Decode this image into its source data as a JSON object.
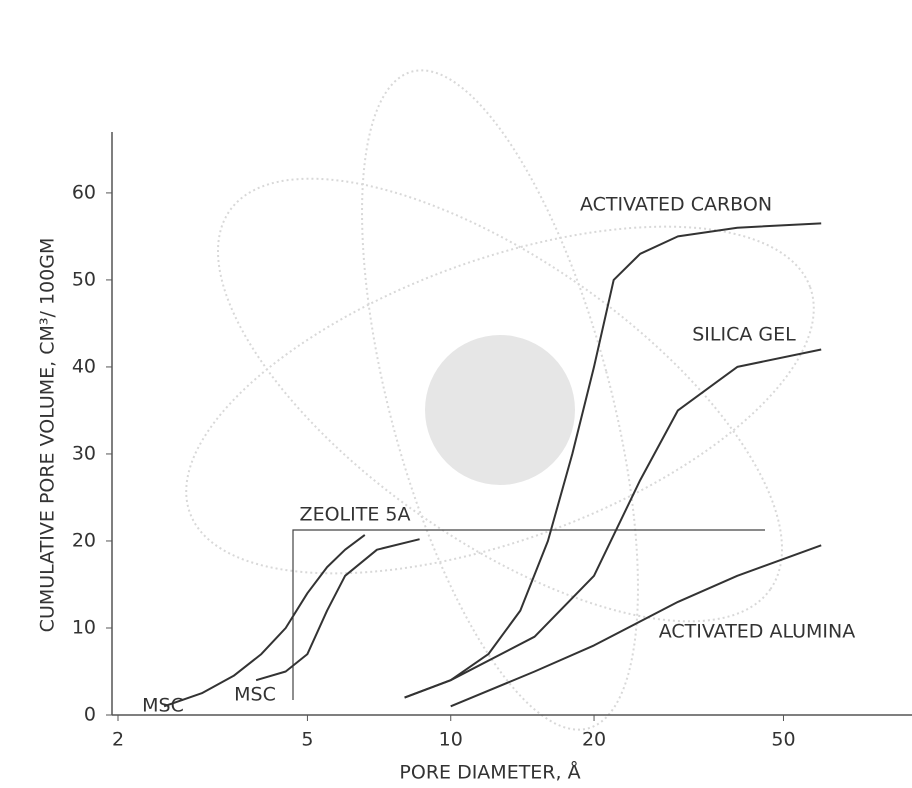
{
  "chart_data": {
    "type": "line",
    "xlabel": "PORE DIAMETER, Å",
    "ylabel": "CUMULATIVE PORE VOLUME, CM³/ 100GM",
    "xscale": "log",
    "xlim": [
      2,
      90
    ],
    "xticks": [
      2,
      5,
      10,
      20,
      50
    ],
    "ylim": [
      0,
      67
    ],
    "yticks": [
      0,
      10,
      20,
      30,
      40,
      50,
      60
    ],
    "annotations": [
      "ZEOLITE 5A"
    ],
    "series": [
      {
        "name": "ACTIVATED CARBON",
        "color": "#333333",
        "x": [
          8,
          10,
          12,
          14,
          16,
          18,
          20,
          22,
          25,
          30,
          40,
          60
        ],
        "values": [
          2,
          4,
          7,
          12,
          20,
          30,
          40,
          50,
          53,
          55,
          56,
          56.5
        ]
      },
      {
        "name": "SILICA GEL",
        "color": "#333333",
        "x": [
          8,
          10,
          15,
          20,
          25,
          30,
          40,
          60
        ],
        "values": [
          2,
          4,
          9,
          16,
          27,
          35,
          40,
          42
        ]
      },
      {
        "name": "ACTIVATED ALUMINA",
        "color": "#333333",
        "x": [
          10,
          15,
          20,
          30,
          40,
          60
        ],
        "values": [
          1,
          5,
          8,
          13,
          16,
          19.5
        ]
      },
      {
        "name": "MSC",
        "color": "#333333",
        "x": [
          2.5,
          3,
          3.5,
          4,
          4.5,
          5,
          5.5,
          6,
          6.6
        ],
        "values": [
          1,
          2.5,
          4.5,
          7,
          10,
          14,
          17,
          19,
          20.7
        ]
      },
      {
        "name": "MSC",
        "color": "#333333",
        "x": [
          3.9,
          4.5,
          5,
          5.5,
          6,
          7,
          8.6
        ],
        "values": [
          4,
          5,
          7,
          12,
          16,
          19,
          20.2
        ]
      }
    ]
  }
}
